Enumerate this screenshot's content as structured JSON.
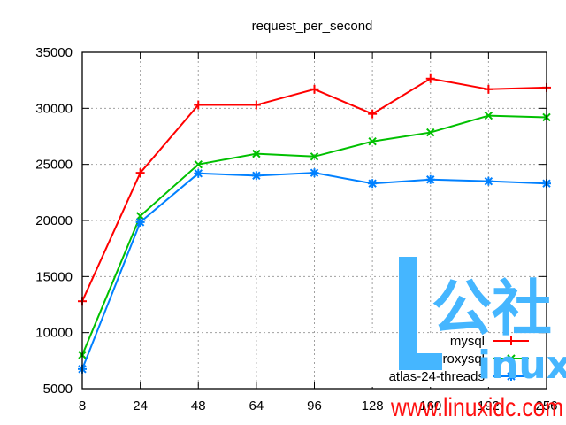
{
  "chart_data": {
    "type": "line",
    "title": "request_per_second",
    "xlabel": "",
    "ylabel": "",
    "categories": [
      "8",
      "24",
      "48",
      "64",
      "96",
      "128",
      "160",
      "192",
      "256"
    ],
    "x": [
      8,
      24,
      48,
      64,
      96,
      128,
      160,
      192,
      256
    ],
    "ylim": [
      5000,
      35000
    ],
    "yticks": [
      5000,
      10000,
      15000,
      20000,
      25000,
      30000,
      35000
    ],
    "grid": true,
    "legend_position": "lower right",
    "series": [
      {
        "name": "mysql",
        "color": "#ff0000",
        "marker": "plus",
        "values": [
          12800,
          24250,
          30300,
          30300,
          31700,
          29500,
          32650,
          31700,
          31850
        ]
      },
      {
        "name": "proxysql",
        "color": "#00c000",
        "marker": "cross",
        "values": [
          8000,
          20400,
          25000,
          25950,
          25700,
          27050,
          27850,
          29350,
          29200
        ]
      },
      {
        "name": "atlas-24-threads",
        "color": "#0080ff",
        "marker": "star",
        "values": [
          6750,
          19850,
          24200,
          24000,
          24250,
          23300,
          23650,
          23500,
          23300
        ]
      }
    ]
  },
  "watermark": {
    "letter": "L",
    "chinese": "公社",
    "latin": "inux",
    "url": "www.linuxidc.com"
  }
}
